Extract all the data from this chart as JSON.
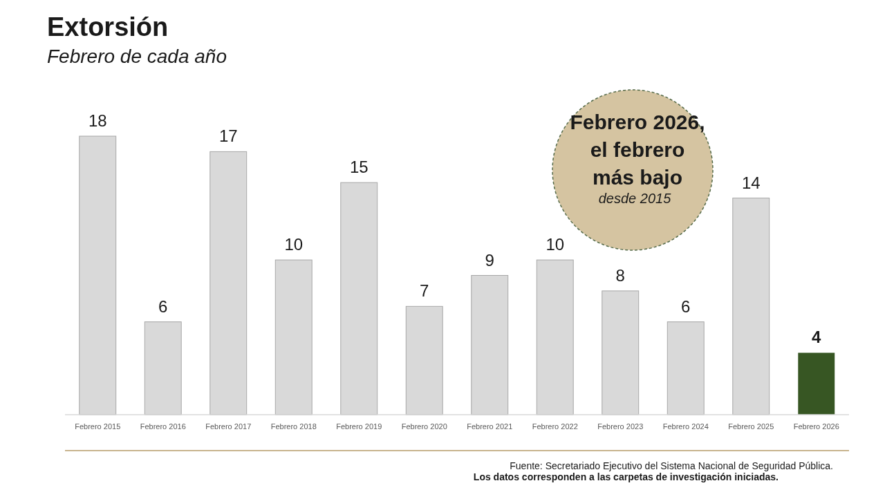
{
  "chart_data": {
    "type": "bar",
    "title": "Extorsión",
    "subtitle": "Febrero de cada año",
    "categories": [
      "Febrero 2015",
      "Febrero 2016",
      "Febrero 2017",
      "Febrero 2018",
      "Febrero 2019",
      "Febrero 2020",
      "Febrero 2021",
      "Febrero 2022",
      "Febrero 2023",
      "Febrero 2024",
      "Febrero 2025",
      "Febrero 2026"
    ],
    "values": [
      18,
      6,
      17,
      10,
      15,
      7,
      9,
      10,
      8,
      6,
      14,
      4
    ],
    "colors": [
      "#d9d9d9",
      "#d9d9d9",
      "#d9d9d9",
      "#d9d9d9",
      "#d9d9d9",
      "#d9d9d9",
      "#d9d9d9",
      "#d9d9d9",
      "#d9d9d9",
      "#d9d9d9",
      "#d9d9d9",
      "#375623"
    ],
    "data_labels": true,
    "annotations": [
      "Febrero 2026,\nel febrero\nmás bajo",
      "desde 2015",
      "Fuente: Secretariado Ejecutivo del Sistema Nacional de Seguridad Pública.",
      "Los datos corresponden a las carpetas de investigación iniciadas."
    ]
  }
}
